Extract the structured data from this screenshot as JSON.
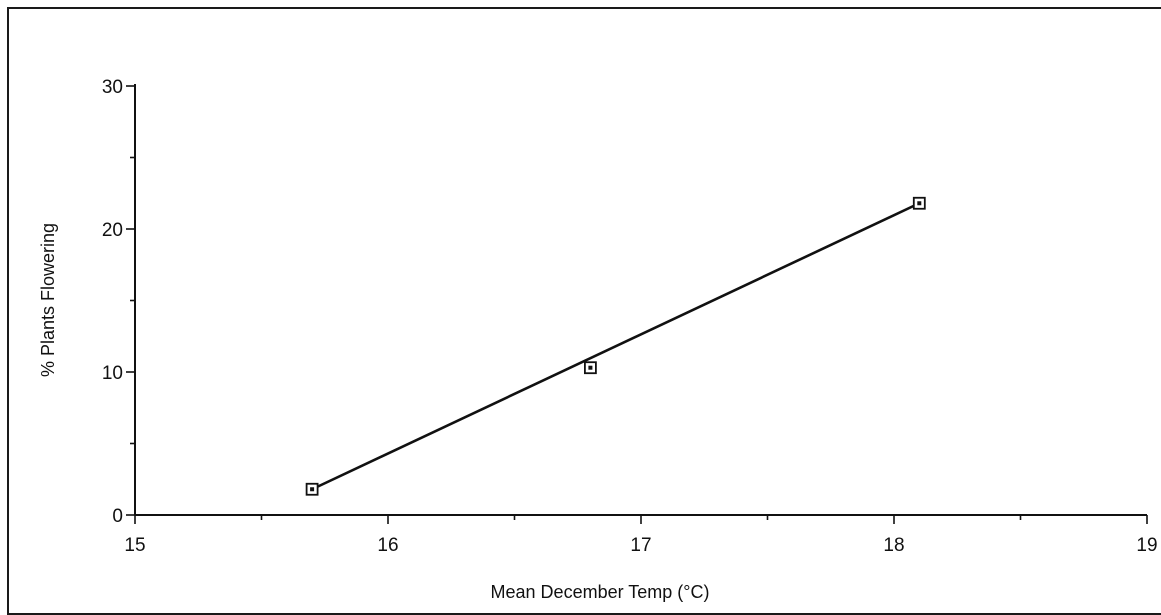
{
  "chart_data": {
    "type": "scatter",
    "xlabel": "Mean December Temp (°C)",
    "ylabel": "% Plants Flowering",
    "xlim": [
      15,
      19
    ],
    "ylim": [
      0,
      30
    ],
    "x_ticks": [
      15,
      16,
      17,
      18,
      19
    ],
    "y_ticks": [
      0,
      10,
      20,
      30
    ],
    "grid": false,
    "legend": "none",
    "series": [
      {
        "points": [
          {
            "x": 15.7,
            "y": 1.8
          },
          {
            "x": 16.8,
            "y": 10.3
          },
          {
            "x": 18.1,
            "y": 21.8
          }
        ]
      }
    ],
    "fit_line": {
      "x": [
        15.7,
        18.1
      ],
      "y": [
        1.8,
        21.8
      ]
    }
  }
}
